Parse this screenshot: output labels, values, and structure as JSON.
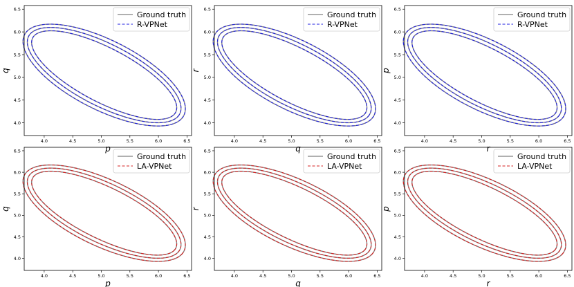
{
  "figure": {
    "description_free": true,
    "colors": {
      "ground_truth": "#808080",
      "r_vpnet": "#1f1fe0",
      "la_vpnet": "#d62020",
      "frame": "#000000"
    }
  },
  "chart_data": [
    {
      "type": "line",
      "xlabel": "p",
      "ylabel": "q",
      "xlim": [
        3.65,
        6.58
      ],
      "ylim": [
        3.72,
        6.58
      ],
      "xticks": [
        "4.0",
        "4.5",
        "5.0",
        "5.5",
        "6.0",
        "6.5"
      ],
      "yticks": [
        "4.0",
        "4.5",
        "5.0",
        "5.5",
        "6.0",
        "6.5"
      ],
      "legend": [
        "Ground truth",
        "R-VPNet"
      ],
      "legend_loc": "top-right",
      "series": [
        {
          "name": "Ground truth",
          "style": "solid",
          "color": "#808080",
          "orbits": [
            {
              "cx": 5.05,
              "cy": 5.05,
              "rmaj": 1.5,
              "rmin": 0.56,
              "angle": -35
            },
            {
              "cx": 5.05,
              "cy": 5.05,
              "rmaj": 1.58,
              "rmin": 0.64,
              "angle": -35
            },
            {
              "cx": 5.05,
              "cy": 5.05,
              "rmaj": 1.66,
              "rmin": 0.72,
              "angle": -35
            }
          ]
        },
        {
          "name": "R-VPNet",
          "style": "dashed",
          "color": "#1f1fe0",
          "orbits": [
            {
              "cx": 5.05,
              "cy": 5.05,
              "rmaj": 1.5,
              "rmin": 0.56,
              "angle": -35
            },
            {
              "cx": 5.05,
              "cy": 5.05,
              "rmaj": 1.58,
              "rmin": 0.64,
              "angle": -35
            },
            {
              "cx": 5.05,
              "cy": 5.05,
              "rmaj": 1.66,
              "rmin": 0.72,
              "angle": -35
            }
          ]
        }
      ]
    },
    {
      "type": "line",
      "xlabel": "q",
      "ylabel": "r",
      "xlim": [
        3.65,
        6.58
      ],
      "ylim": [
        3.72,
        6.58
      ],
      "xticks": [
        "4.0",
        "4.5",
        "5.0",
        "5.5",
        "6.0",
        "6.5"
      ],
      "yticks": [
        "4.0",
        "4.5",
        "5.0",
        "5.5",
        "6.0",
        "6.5"
      ],
      "legend": [
        "Ground truth",
        "R-VPNet"
      ],
      "legend_loc": "top-right",
      "series": [
        {
          "name": "Ground truth",
          "style": "solid",
          "color": "#808080",
          "orbits": [
            {
              "cx": 5.05,
              "cy": 5.05,
              "rmaj": 1.5,
              "rmin": 0.56,
              "angle": -35
            },
            {
              "cx": 5.05,
              "cy": 5.05,
              "rmaj": 1.58,
              "rmin": 0.64,
              "angle": -35
            },
            {
              "cx": 5.05,
              "cy": 5.05,
              "rmaj": 1.66,
              "rmin": 0.72,
              "angle": -35
            }
          ]
        },
        {
          "name": "R-VPNet",
          "style": "dashed",
          "color": "#1f1fe0",
          "orbits": [
            {
              "cx": 5.05,
              "cy": 5.05,
              "rmaj": 1.5,
              "rmin": 0.56,
              "angle": -35
            },
            {
              "cx": 5.05,
              "cy": 5.05,
              "rmaj": 1.58,
              "rmin": 0.64,
              "angle": -35
            },
            {
              "cx": 5.05,
              "cy": 5.05,
              "rmaj": 1.66,
              "rmin": 0.72,
              "angle": -35
            }
          ]
        }
      ]
    },
    {
      "type": "line",
      "xlabel": "r",
      "ylabel": "p",
      "xlim": [
        3.65,
        6.58
      ],
      "ylim": [
        3.72,
        6.58
      ],
      "xticks": [
        "4.0",
        "4.5",
        "5.0",
        "5.5",
        "6.0",
        "6.5"
      ],
      "yticks": [
        "4.0",
        "4.5",
        "5.0",
        "5.5",
        "6.0",
        "6.5"
      ],
      "legend": [
        "Ground truth",
        "R-VPNet"
      ],
      "legend_loc": "top-right",
      "series": [
        {
          "name": "Ground truth",
          "style": "solid",
          "color": "#808080",
          "orbits": [
            {
              "cx": 5.05,
              "cy": 5.05,
              "rmaj": 1.5,
              "rmin": 0.56,
              "angle": -35
            },
            {
              "cx": 5.05,
              "cy": 5.05,
              "rmaj": 1.58,
              "rmin": 0.64,
              "angle": -35
            },
            {
              "cx": 5.05,
              "cy": 5.05,
              "rmaj": 1.66,
              "rmin": 0.72,
              "angle": -35
            }
          ]
        },
        {
          "name": "R-VPNet",
          "style": "dashed",
          "color": "#1f1fe0",
          "orbits": [
            {
              "cx": 5.05,
              "cy": 5.05,
              "rmaj": 1.5,
              "rmin": 0.56,
              "angle": -35
            },
            {
              "cx": 5.05,
              "cy": 5.05,
              "rmaj": 1.58,
              "rmin": 0.64,
              "angle": -35
            },
            {
              "cx": 5.05,
              "cy": 5.05,
              "rmaj": 1.66,
              "rmin": 0.72,
              "angle": -35
            }
          ]
        }
      ]
    },
    {
      "type": "line",
      "xlabel": "p",
      "ylabel": "q",
      "xlim": [
        3.65,
        6.58
      ],
      "ylim": [
        3.72,
        6.58
      ],
      "xticks": [
        "4.0",
        "4.5",
        "5.0",
        "5.5",
        "6.0",
        "6.5"
      ],
      "yticks": [
        "4.0",
        "4.5",
        "5.0",
        "5.5",
        "6.0",
        "6.5"
      ],
      "legend": [
        "Ground truth",
        "LA-VPNet"
      ],
      "legend_loc": "top-right",
      "series": [
        {
          "name": "Ground truth",
          "style": "solid",
          "color": "#808080",
          "orbits": [
            {
              "cx": 5.05,
              "cy": 5.05,
              "rmaj": 1.5,
              "rmin": 0.56,
              "angle": -35
            },
            {
              "cx": 5.05,
              "cy": 5.05,
              "rmaj": 1.58,
              "rmin": 0.64,
              "angle": -35
            },
            {
              "cx": 5.05,
              "cy": 5.05,
              "rmaj": 1.66,
              "rmin": 0.72,
              "angle": -35
            }
          ]
        },
        {
          "name": "LA-VPNet",
          "style": "dashed",
          "color": "#d62020",
          "orbits": [
            {
              "cx": 5.05,
              "cy": 5.05,
              "rmaj": 1.5,
              "rmin": 0.56,
              "angle": -35
            },
            {
              "cx": 5.05,
              "cy": 5.05,
              "rmaj": 1.58,
              "rmin": 0.64,
              "angle": -35
            },
            {
              "cx": 5.05,
              "cy": 5.05,
              "rmaj": 1.66,
              "rmin": 0.72,
              "angle": -35
            }
          ]
        }
      ]
    },
    {
      "type": "line",
      "xlabel": "q",
      "ylabel": "r",
      "xlim": [
        3.65,
        6.58
      ],
      "ylim": [
        3.72,
        6.58
      ],
      "xticks": [
        "4.0",
        "4.5",
        "5.0",
        "5.5",
        "6.0",
        "6.5"
      ],
      "yticks": [
        "4.0",
        "4.5",
        "5.0",
        "5.5",
        "6.0",
        "6.5"
      ],
      "legend": [
        "Ground truth",
        "LA-VPNet"
      ],
      "legend_loc": "top-right",
      "series": [
        {
          "name": "Ground truth",
          "style": "solid",
          "color": "#808080",
          "orbits": [
            {
              "cx": 5.05,
              "cy": 5.05,
              "rmaj": 1.5,
              "rmin": 0.56,
              "angle": -35
            },
            {
              "cx": 5.05,
              "cy": 5.05,
              "rmaj": 1.58,
              "rmin": 0.64,
              "angle": -35
            },
            {
              "cx": 5.05,
              "cy": 5.05,
              "rmaj": 1.66,
              "rmin": 0.72,
              "angle": -35
            }
          ]
        },
        {
          "name": "LA-VPNet",
          "style": "dashed",
          "color": "#d62020",
          "orbits": [
            {
              "cx": 5.05,
              "cy": 5.05,
              "rmaj": 1.5,
              "rmin": 0.56,
              "angle": -35
            },
            {
              "cx": 5.05,
              "cy": 5.05,
              "rmaj": 1.58,
              "rmin": 0.64,
              "angle": -35
            },
            {
              "cx": 5.05,
              "cy": 5.05,
              "rmaj": 1.66,
              "rmin": 0.72,
              "angle": -35
            }
          ]
        }
      ]
    },
    {
      "type": "line",
      "xlabel": "r",
      "ylabel": "p",
      "xlim": [
        3.65,
        6.58
      ],
      "ylim": [
        3.72,
        6.58
      ],
      "xticks": [
        "4.0",
        "4.5",
        "5.0",
        "5.5",
        "6.0",
        "6.5"
      ],
      "yticks": [
        "4.0",
        "4.5",
        "5.0",
        "5.5",
        "6.0",
        "6.5"
      ],
      "legend": [
        "Ground truth",
        "LA-VPNet"
      ],
      "legend_loc": "top-right",
      "series": [
        {
          "name": "Ground truth",
          "style": "solid",
          "color": "#808080",
          "orbits": [
            {
              "cx": 5.05,
              "cy": 5.05,
              "rmaj": 1.5,
              "rmin": 0.56,
              "angle": -35
            },
            {
              "cx": 5.05,
              "cy": 5.05,
              "rmaj": 1.58,
              "rmin": 0.64,
              "angle": -35
            },
            {
              "cx": 5.05,
              "cy": 5.05,
              "rmaj": 1.66,
              "rmin": 0.72,
              "angle": -35
            }
          ]
        },
        {
          "name": "LA-VPNet",
          "style": "dashed",
          "color": "#d62020",
          "orbits": [
            {
              "cx": 5.05,
              "cy": 5.05,
              "rmaj": 1.5,
              "rmin": 0.56,
              "angle": -35
            },
            {
              "cx": 5.05,
              "cy": 5.05,
              "rmaj": 1.58,
              "rmin": 0.64,
              "angle": -35
            },
            {
              "cx": 5.05,
              "cy": 5.05,
              "rmaj": 1.66,
              "rmin": 0.72,
              "angle": -35
            }
          ]
        }
      ]
    }
  ]
}
